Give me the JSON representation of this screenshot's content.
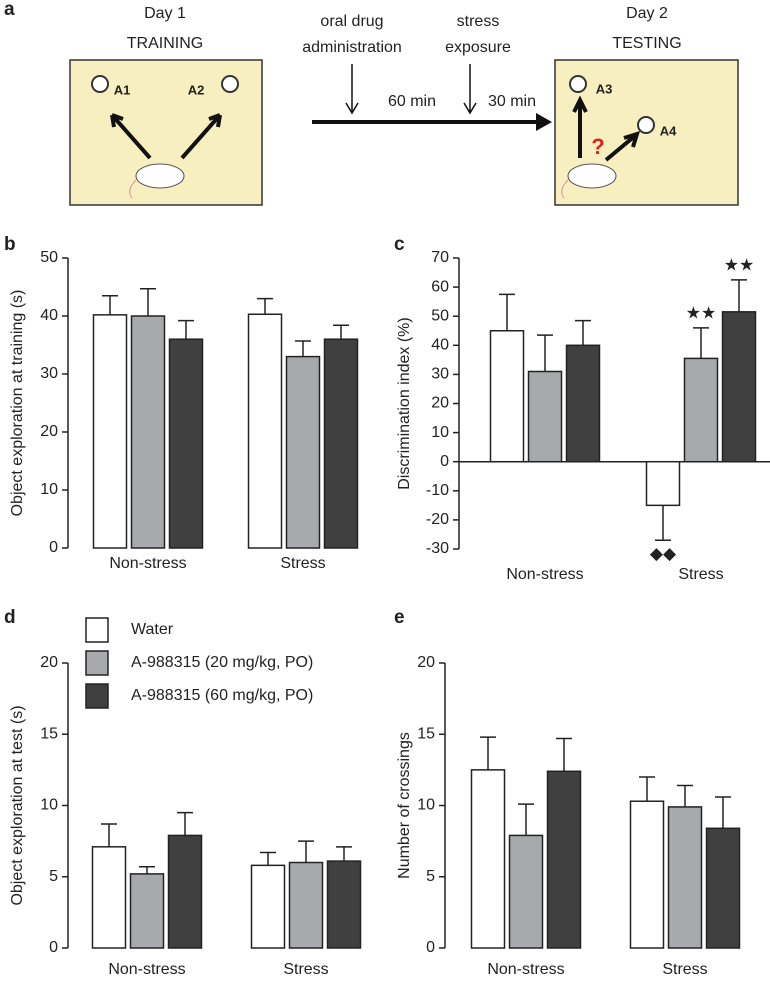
{
  "diagram": {
    "panel_label": "a",
    "day1": "Day 1",
    "training": "TRAINING",
    "oral_drug": "oral drug",
    "administration": "administration",
    "stress": "stress",
    "exposure": "exposure",
    "interval1": "60 min",
    "interval2": "30 min",
    "day2": "Day 2",
    "testing": "TESTING",
    "objects": [
      "A1",
      "A2",
      "A3",
      "A4"
    ],
    "question": "?"
  },
  "chart_data": [
    {
      "type": "bar",
      "panel_label": "b",
      "y_label": "Object exploration at training (s)",
      "categories": [
        "Non-stress",
        "Stress"
      ],
      "series": [
        {
          "color": "#ffffff",
          "values": [
            40.2,
            40.3
          ],
          "errors": [
            3.3,
            2.7
          ]
        },
        {
          "color": "#a7a9ac",
          "values": [
            40,
            33
          ],
          "errors": [
            4.7,
            2.7
          ]
        },
        {
          "color": "#404041",
          "values": [
            36,
            36
          ],
          "errors": [
            3.2,
            2.4
          ]
        }
      ],
      "ylim": [
        0,
        50
      ],
      "yticks": [
        0,
        10,
        20,
        30,
        40,
        50
      ]
    },
    {
      "type": "bar",
      "panel_label": "c",
      "y_label": "Discrimination index (%)",
      "categories": [
        "Non-stress",
        "Stress"
      ],
      "series": [
        {
          "color": "#ffffff",
          "values": [
            45,
            -15
          ],
          "errors": [
            12.5,
            12
          ],
          "annotations": [
            null,
            "◆◆"
          ]
        },
        {
          "color": "#a7a9ac",
          "values": [
            31,
            35.5
          ],
          "errors": [
            12.5,
            10.5
          ],
          "annotations": [
            null,
            "★★"
          ]
        },
        {
          "color": "#404041",
          "values": [
            40,
            51.5
          ],
          "errors": [
            8.5,
            11
          ],
          "annotations": [
            null,
            "★★"
          ]
        }
      ],
      "ylim": [
        -30,
        70
      ],
      "yticks": [
        -30,
        -20,
        -10,
        0,
        10,
        20,
        30,
        40,
        50,
        60,
        70
      ]
    },
    {
      "type": "bar",
      "panel_label": "d",
      "y_label": "Object exploration at test (s)",
      "categories": [
        "Non-stress",
        "Stress"
      ],
      "series": [
        {
          "name": "Water",
          "color": "#ffffff",
          "values": [
            7.1,
            5.8
          ],
          "errors": [
            1.6,
            0.9
          ]
        },
        {
          "name": "A-988315 (20 mg/kg, PO)",
          "color": "#a7a9ac",
          "values": [
            5.2,
            6.0
          ],
          "errors": [
            0.5,
            1.5
          ]
        },
        {
          "name": "A-988315 (60 mg/kg, PO)",
          "color": "#404041",
          "values": [
            7.9,
            6.1
          ],
          "errors": [
            1.6,
            1.0
          ]
        }
      ],
      "ylim": [
        0,
        20
      ],
      "yticks": [
        0,
        5,
        10,
        15,
        20
      ],
      "legend": "top-left"
    },
    {
      "type": "bar",
      "panel_label": "e",
      "y_label": "Number of crossings",
      "categories": [
        "Non-stress",
        "Stress"
      ],
      "series": [
        {
          "color": "#ffffff",
          "values": [
            12.5,
            10.3
          ],
          "errors": [
            2.3,
            1.7
          ]
        },
        {
          "color": "#a7a9ac",
          "values": [
            7.9,
            9.9
          ],
          "errors": [
            2.2,
            1.5
          ]
        },
        {
          "color": "#404041",
          "values": [
            12.4,
            8.4
          ],
          "errors": [
            2.3,
            2.2
          ]
        }
      ],
      "ylim": [
        0,
        20
      ],
      "yticks": [
        0,
        5,
        10,
        15,
        20
      ]
    }
  ]
}
